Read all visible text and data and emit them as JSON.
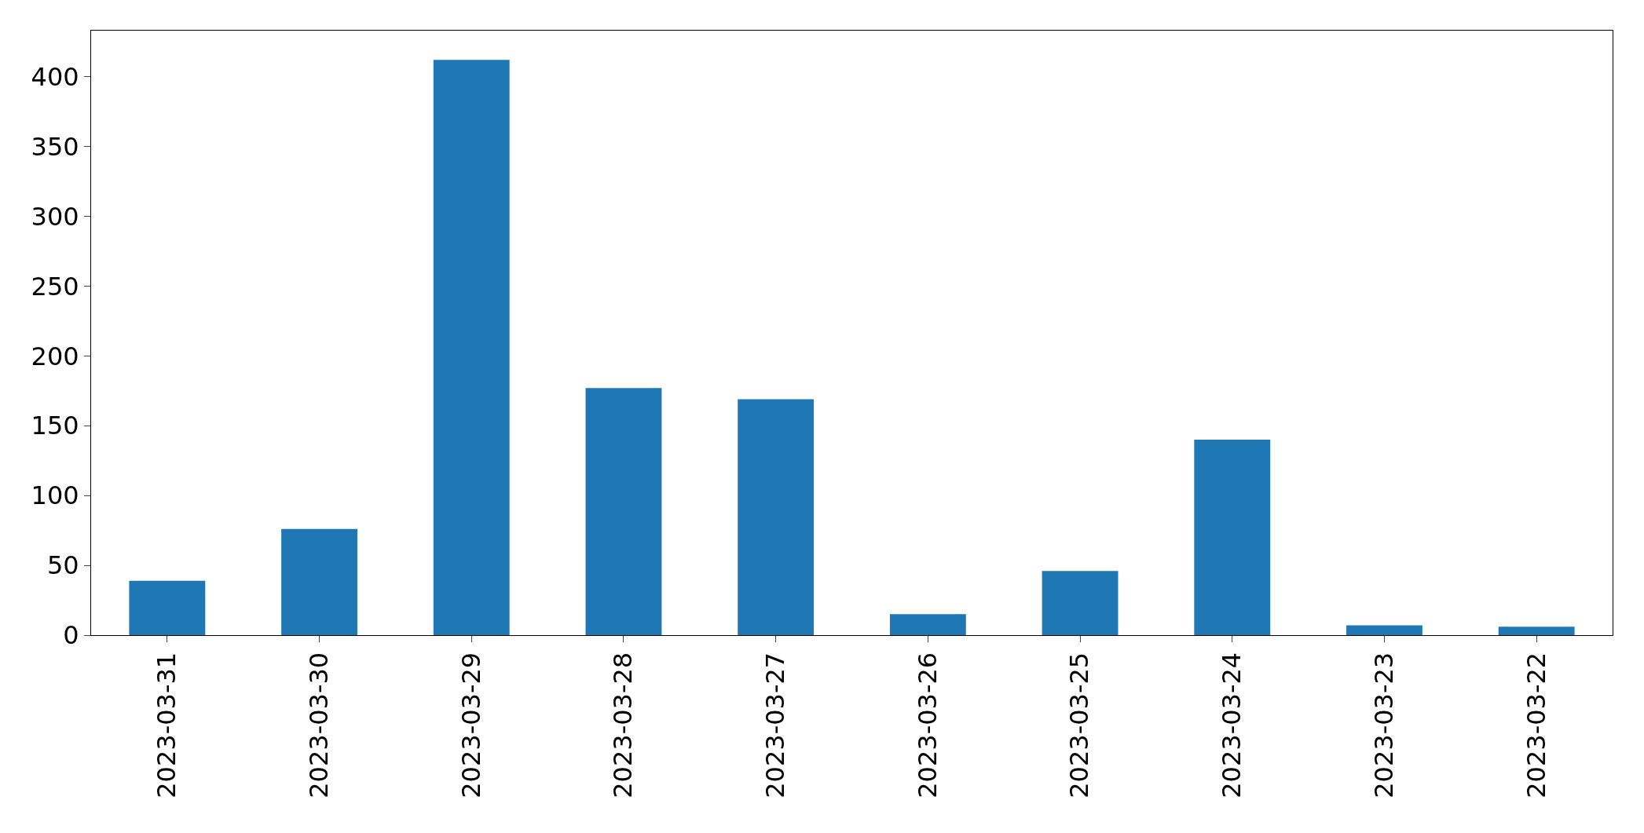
{
  "chart_data": {
    "type": "bar",
    "categories": [
      "2023-03-31",
      "2023-03-30",
      "2023-03-29",
      "2023-03-28",
      "2023-03-27",
      "2023-03-26",
      "2023-03-25",
      "2023-03-24",
      "2023-03-23",
      "2023-03-22"
    ],
    "values": [
      39,
      76,
      412,
      177,
      169,
      15,
      46,
      140,
      7,
      6
    ],
    "color": "#1f77b4",
    "ylim": [
      0,
      433
    ],
    "yticks": [
      0,
      50,
      100,
      150,
      200,
      250,
      300,
      350,
      400
    ]
  }
}
